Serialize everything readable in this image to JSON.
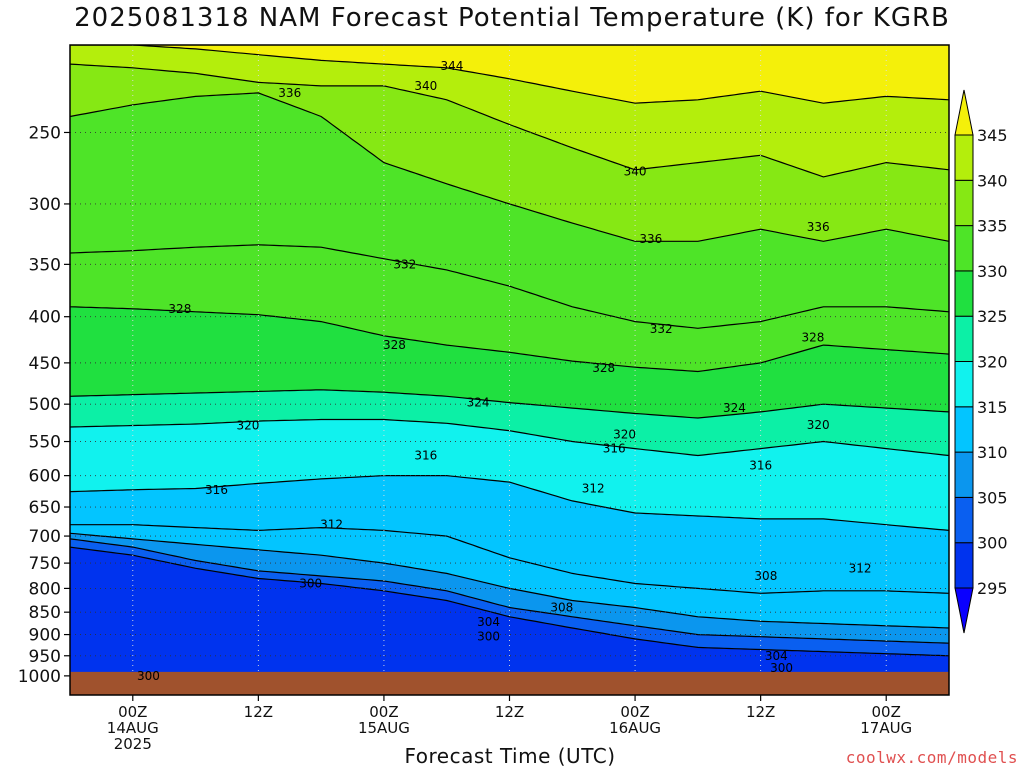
{
  "title": "2025081318 NAM Forecast Potential Temperature (K) for KGRB",
  "credit": "coolwx.com/models",
  "chart_data": {
    "type": "heatmap",
    "title": "2025081318 NAM Forecast Potential Temperature (K) for KGRB",
    "xlabel": "Forecast Time (UTC)",
    "ylabel": "",
    "y_scale": "log",
    "y_inverted": true,
    "ylim": [
      1050,
      200
    ],
    "xlim": [
      0,
      84
    ],
    "y_ticks": [
      250,
      300,
      350,
      400,
      450,
      500,
      550,
      600,
      650,
      700,
      750,
      800,
      850,
      900,
      950,
      1000
    ],
    "x_ticks": [
      {
        "hour": 6,
        "lines": [
          "00Z",
          "14AUG",
          "2025"
        ]
      },
      {
        "hour": 18,
        "lines": [
          "12Z"
        ]
      },
      {
        "hour": 30,
        "lines": [
          "00Z",
          "15AUG"
        ]
      },
      {
        "hour": 42,
        "lines": [
          "12Z"
        ]
      },
      {
        "hour": 54,
        "lines": [
          "00Z",
          "16AUG"
        ]
      },
      {
        "hour": 66,
        "lines": [
          "12Z"
        ]
      },
      {
        "hour": 78,
        "lines": [
          "00Z",
          "17AUG"
        ]
      }
    ],
    "grid": true,
    "colorbar": {
      "levels": [
        295,
        300,
        305,
        310,
        315,
        320,
        325,
        330,
        335,
        340,
        345
      ],
      "colors": [
        "#0a00ff",
        "#0033ee",
        "#0a5ff0",
        "#0b96ee",
        "#03c5ff",
        "#11f2ee",
        "#0cf0a6",
        "#20e040",
        "#4ee428",
        "#86e814",
        "#b4ee0c",
        "#f4f00a"
      ],
      "extend": "both"
    },
    "contours": {
      "interval": 4,
      "labels": [
        {
          "hour": 7.5,
          "p": 1000,
          "value": 300
        },
        {
          "hour": 23,
          "p": 790,
          "value": 300
        },
        {
          "hour": 40,
          "p": 905,
          "value": 300
        },
        {
          "hour": 68,
          "p": 980,
          "value": 300
        },
        {
          "hour": 40,
          "p": 872,
          "value": 304
        },
        {
          "hour": 67.5,
          "p": 950,
          "value": 304
        },
        {
          "hour": 47,
          "p": 840,
          "value": 308
        },
        {
          "hour": 66.5,
          "p": 775,
          "value": 308
        },
        {
          "hour": 75.5,
          "p": 760,
          "value": 312
        },
        {
          "hour": 25,
          "p": 680,
          "value": 312
        },
        {
          "hour": 50,
          "p": 620,
          "value": 312
        },
        {
          "hour": 14,
          "p": 622,
          "value": 316
        },
        {
          "hour": 34,
          "p": 570,
          "value": 316
        },
        {
          "hour": 52,
          "p": 560,
          "value": 316
        },
        {
          "hour": 66,
          "p": 585,
          "value": 316
        },
        {
          "hour": 17,
          "p": 528,
          "value": 320
        },
        {
          "hour": 53,
          "p": 540,
          "value": 320
        },
        {
          "hour": 71.5,
          "p": 527,
          "value": 320
        },
        {
          "hour": 39,
          "p": 498,
          "value": 324
        },
        {
          "hour": 63.5,
          "p": 505,
          "value": 324
        },
        {
          "hour": 10.5,
          "p": 392,
          "value": 328
        },
        {
          "hour": 31,
          "p": 430,
          "value": 328
        },
        {
          "hour": 51,
          "p": 456,
          "value": 328
        },
        {
          "hour": 71,
          "p": 422,
          "value": 328
        },
        {
          "hour": 32,
          "p": 350,
          "value": 332
        },
        {
          "hour": 56.5,
          "p": 413,
          "value": 332
        },
        {
          "hour": 21,
          "p": 226,
          "value": 336
        },
        {
          "hour": 55.5,
          "p": 328,
          "value": 336
        },
        {
          "hour": 71.5,
          "p": 318,
          "value": 336
        },
        {
          "hour": 34,
          "p": 222,
          "value": 340
        },
        {
          "hour": 54,
          "p": 276,
          "value": 340
        },
        {
          "hour": 36.5,
          "p": 211,
          "value": 344
        }
      ]
    },
    "ground": {
      "color": "#a0522d",
      "pressure": 1000
    },
    "series": [
      {
        "value": 300,
        "hours": [
          0,
          6,
          12,
          18,
          24,
          30,
          36,
          42,
          48,
          54,
          60,
          66,
          72,
          78,
          84
        ],
        "p": [
          720,
          735,
          760,
          780,
          790,
          805,
          825,
          860,
          885,
          910,
          930,
          935,
          940,
          945,
          950
        ]
      },
      {
        "value": 304,
        "hours": [
          0,
          6,
          12,
          18,
          24,
          30,
          36,
          42,
          48,
          54,
          60,
          66,
          72,
          78,
          84
        ],
        "p": [
          705,
          720,
          745,
          765,
          775,
          785,
          805,
          840,
          860,
          880,
          900,
          905,
          910,
          915,
          920
        ]
      },
      {
        "value": 308,
        "hours": [
          0,
          6,
          12,
          18,
          24,
          30,
          36,
          42,
          48,
          54,
          60,
          66,
          72,
          78,
          84
        ],
        "p": [
          695,
          705,
          715,
          725,
          735,
          750,
          770,
          800,
          825,
          840,
          860,
          870,
          875,
          880,
          885
        ]
      },
      {
        "value": 312,
        "hours": [
          0,
          6,
          12,
          18,
          24,
          30,
          36,
          42,
          48,
          54,
          60,
          66,
          72,
          78,
          84
        ],
        "p": [
          680,
          680,
          685,
          690,
          685,
          690,
          700,
          740,
          770,
          790,
          800,
          810,
          805,
          805,
          810
        ]
      },
      {
        "value": 316,
        "hours": [
          0,
          6,
          12,
          18,
          24,
          30,
          36,
          42,
          48,
          54,
          60,
          66,
          72,
          78,
          84
        ],
        "p": [
          625,
          622,
          620,
          612,
          605,
          600,
          600,
          610,
          640,
          660,
          665,
          670,
          670,
          680,
          690
        ]
      },
      {
        "value": 320,
        "hours": [
          0,
          6,
          12,
          18,
          24,
          30,
          36,
          42,
          48,
          54,
          60,
          66,
          72,
          78,
          84
        ],
        "p": [
          530,
          528,
          526,
          522,
          520,
          520,
          525,
          535,
          550,
          560,
          570,
          560,
          550,
          560,
          570
        ]
      },
      {
        "value": 324,
        "hours": [
          0,
          6,
          12,
          18,
          24,
          30,
          36,
          42,
          48,
          54,
          60,
          66,
          72,
          78,
          84
        ],
        "p": [
          490,
          488,
          486,
          484,
          482,
          485,
          490,
          498,
          505,
          512,
          518,
          510,
          500,
          505,
          510
        ]
      },
      {
        "value": 328,
        "hours": [
          0,
          6,
          12,
          18,
          24,
          30,
          36,
          42,
          48,
          54,
          60,
          66,
          72,
          78,
          84
        ],
        "p": [
          390,
          392,
          395,
          398,
          405,
          420,
          430,
          438,
          448,
          455,
          460,
          450,
          430,
          435,
          440
        ]
      },
      {
        "value": 332,
        "hours": [
          0,
          6,
          12,
          18,
          24,
          30,
          36,
          42,
          48,
          54,
          60,
          66,
          72,
          78,
          84
        ],
        "p": [
          340,
          338,
          335,
          333,
          335,
          345,
          355,
          370,
          390,
          405,
          412,
          405,
          390,
          390,
          395
        ]
      },
      {
        "value": 336,
        "hours": [
          0,
          6,
          12,
          18,
          24,
          30,
          36,
          42,
          48,
          54,
          60,
          66,
          72,
          78,
          84
        ],
        "p": [
          240,
          233,
          228,
          226,
          240,
          270,
          285,
          300,
          315,
          330,
          330,
          320,
          330,
          320,
          330
        ]
      },
      {
        "value": 340,
        "hours": [
          0,
          6,
          12,
          18,
          24,
          30,
          36,
          42,
          48,
          54,
          60,
          66,
          72,
          78,
          84
        ],
        "p": [
          210,
          212,
          215,
          220,
          222,
          222,
          230,
          245,
          260,
          275,
          270,
          265,
          280,
          270,
          275
        ]
      },
      {
        "value": 344,
        "hours": [
          0,
          6,
          12,
          18,
          24,
          30,
          36,
          42,
          48,
          54,
          60,
          66,
          72,
          78,
          84
        ],
        "p": [
          200,
          200,
          202,
          205,
          208,
          210,
          212,
          218,
          225,
          232,
          230,
          225,
          232,
          228,
          230
        ]
      }
    ]
  }
}
